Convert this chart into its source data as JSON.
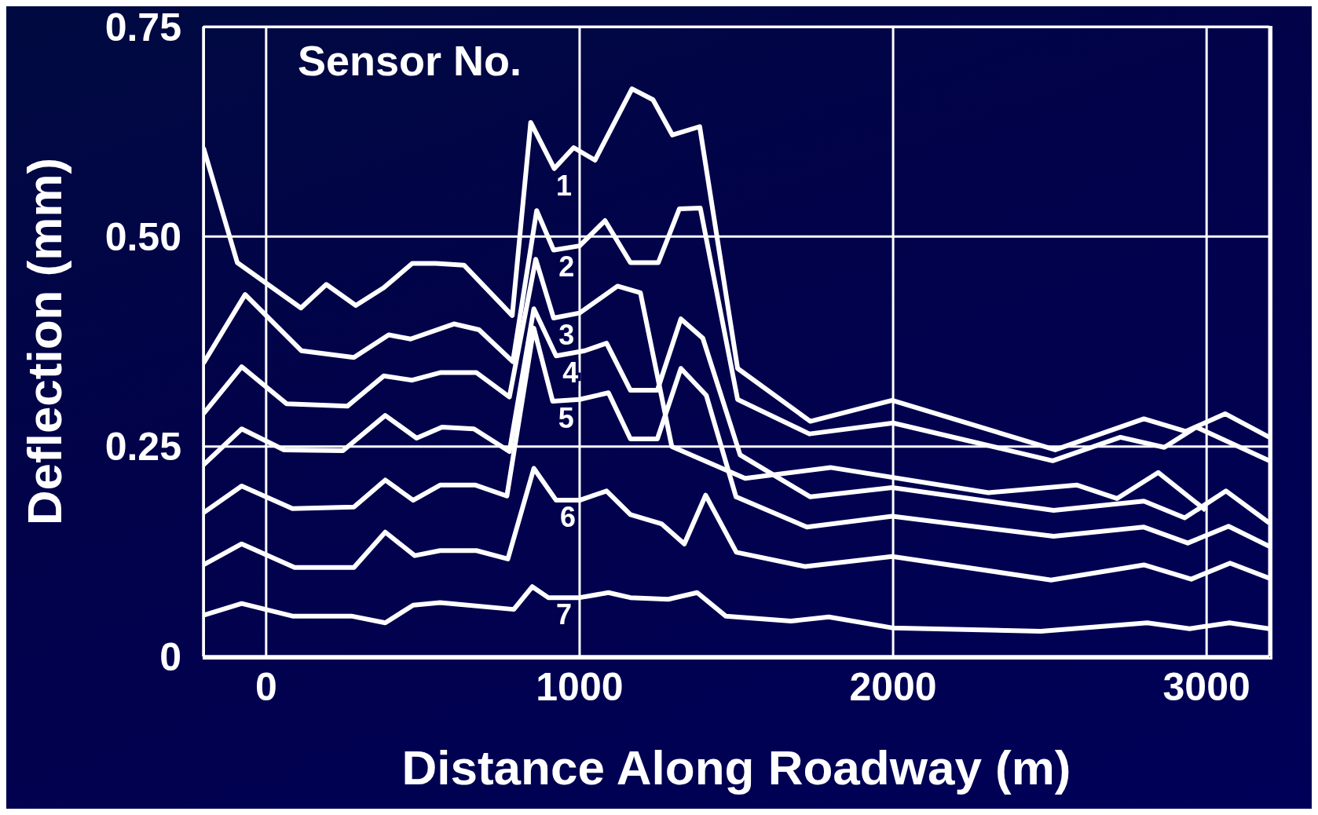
{
  "chart_data": {
    "type": "line",
    "xlabel": "Distance Along Roadway (m)",
    "ylabel": "Deflection (mm)",
    "legend_title": "Sensor No.",
    "xlim": [
      -200,
      3200
    ],
    "xticks": [
      0,
      1000,
      2000,
      3000
    ],
    "ylim": [
      0,
      0.75
    ],
    "yticks": [
      {
        "value": 0,
        "label": "0"
      },
      {
        "value": 0.25,
        "label": "0.25"
      },
      {
        "value": 0.5,
        "label": "0.50"
      },
      {
        "value": 0.75,
        "label": "0.75"
      }
    ],
    "grid": true,
    "marker": "none",
    "line_style": "solid",
    "legend": false,
    "series": [
      {
        "name": "1",
        "color": "#ffffff",
        "x": [
          -200,
          -92,
          111,
          192,
          286,
          375,
          466,
          542,
          631,
          785,
          844,
          919,
          981,
          1049,
          1167,
          1234,
          1296,
          1383,
          1504,
          1736,
          1997,
          2517,
          2800,
          2933,
          3059,
          3200
        ],
        "values": [
          0.606,
          0.469,
          0.415,
          0.443,
          0.418,
          0.439,
          0.468,
          0.468,
          0.466,
          0.406,
          0.636,
          0.581,
          0.606,
          0.591,
          0.676,
          0.663,
          0.621,
          0.631,
          0.343,
          0.28,
          0.305,
          0.246,
          0.283,
          0.268,
          0.289,
          0.261
        ]
      },
      {
        "name": "2",
        "color": "#ffffff",
        "x": [
          -200,
          -67,
          113,
          280,
          391,
          461,
          599,
          679,
          787,
          863,
          917,
          1000,
          1081,
          1162,
          1251,
          1318,
          1385,
          1504,
          1733,
          2000,
          2509,
          2725,
          2865,
          2967,
          3200
        ],
        "values": [
          0.349,
          0.431,
          0.364,
          0.356,
          0.383,
          0.378,
          0.396,
          0.389,
          0.351,
          0.531,
          0.484,
          0.489,
          0.519,
          0.469,
          0.469,
          0.533,
          0.534,
          0.306,
          0.265,
          0.278,
          0.233,
          0.261,
          0.249,
          0.273,
          0.233
        ]
      },
      {
        "name": "3",
        "color": "#ffffff",
        "x": [
          -200,
          -78,
          65,
          259,
          375,
          466,
          555,
          671,
          776,
          860,
          917,
          1000,
          1121,
          1194,
          1294,
          1528,
          1800,
          2304,
          2587,
          2714,
          2846,
          2997
        ],
        "values": [
          0.289,
          0.345,
          0.301,
          0.298,
          0.334,
          0.329,
          0.338,
          0.338,
          0.309,
          0.473,
          0.403,
          0.409,
          0.441,
          0.433,
          0.25,
          0.212,
          0.225,
          0.195,
          0.204,
          0.188,
          0.219,
          0.174
        ]
      },
      {
        "name": "4",
        "color": "#ffffff",
        "x": [
          -200,
          -78,
          57,
          245,
          380,
          480,
          561,
          663,
          776,
          854,
          925,
          1016,
          1086,
          1162,
          1248,
          1323,
          1393,
          1512,
          1736,
          1997,
          2512,
          2800,
          2930,
          3062,
          3200
        ],
        "values": [
          0.228,
          0.271,
          0.246,
          0.245,
          0.287,
          0.26,
          0.273,
          0.271,
          0.244,
          0.414,
          0.358,
          0.364,
          0.373,
          0.317,
          0.317,
          0.402,
          0.379,
          0.24,
          0.19,
          0.201,
          0.174,
          0.185,
          0.165,
          0.197,
          0.159
        ]
      },
      {
        "name": "5",
        "color": "#ffffff",
        "x": [
          -200,
          -78,
          84,
          280,
          380,
          469,
          555,
          668,
          768,
          854,
          914,
          1000,
          1092,
          1162,
          1248,
          1323,
          1404,
          1499,
          1725,
          1997,
          2512,
          2800,
          2940,
          3070,
          3200
        ],
        "values": [
          0.171,
          0.203,
          0.176,
          0.178,
          0.21,
          0.186,
          0.204,
          0.204,
          0.191,
          0.391,
          0.304,
          0.306,
          0.314,
          0.259,
          0.259,
          0.343,
          0.311,
          0.19,
          0.154,
          0.167,
          0.143,
          0.154,
          0.135,
          0.155,
          0.131
        ]
      },
      {
        "name": "6",
        "color": "#ffffff",
        "x": [
          -200,
          -78,
          91,
          280,
          380,
          474,
          555,
          671,
          771,
          854,
          925,
          1000,
          1086,
          1162,
          1261,
          1334,
          1402,
          1500,
          1720,
          1997,
          2504,
          2800,
          2951,
          3075,
          3200
        ],
        "values": [
          0.109,
          0.134,
          0.106,
          0.106,
          0.148,
          0.12,
          0.126,
          0.126,
          0.116,
          0.224,
          0.186,
          0.186,
          0.197,
          0.169,
          0.158,
          0.134,
          0.192,
          0.124,
          0.107,
          0.119,
          0.091,
          0.109,
          0.092,
          0.111,
          0.093
        ]
      },
      {
        "name": "7",
        "color": "#ffffff",
        "x": [
          -200,
          -78,
          84,
          272,
          380,
          469,
          555,
          790,
          849,
          900,
          1000,
          1092,
          1162,
          1283,
          1375,
          1466,
          1674,
          1795,
          1997,
          2471,
          2811,
          2946,
          3073,
          3200
        ],
        "values": [
          0.049,
          0.063,
          0.048,
          0.048,
          0.04,
          0.061,
          0.064,
          0.056,
          0.083,
          0.07,
          0.07,
          0.076,
          0.07,
          0.068,
          0.076,
          0.048,
          0.042,
          0.047,
          0.034,
          0.03,
          0.04,
          0.033,
          0.04,
          0.033
        ]
      }
    ]
  }
}
